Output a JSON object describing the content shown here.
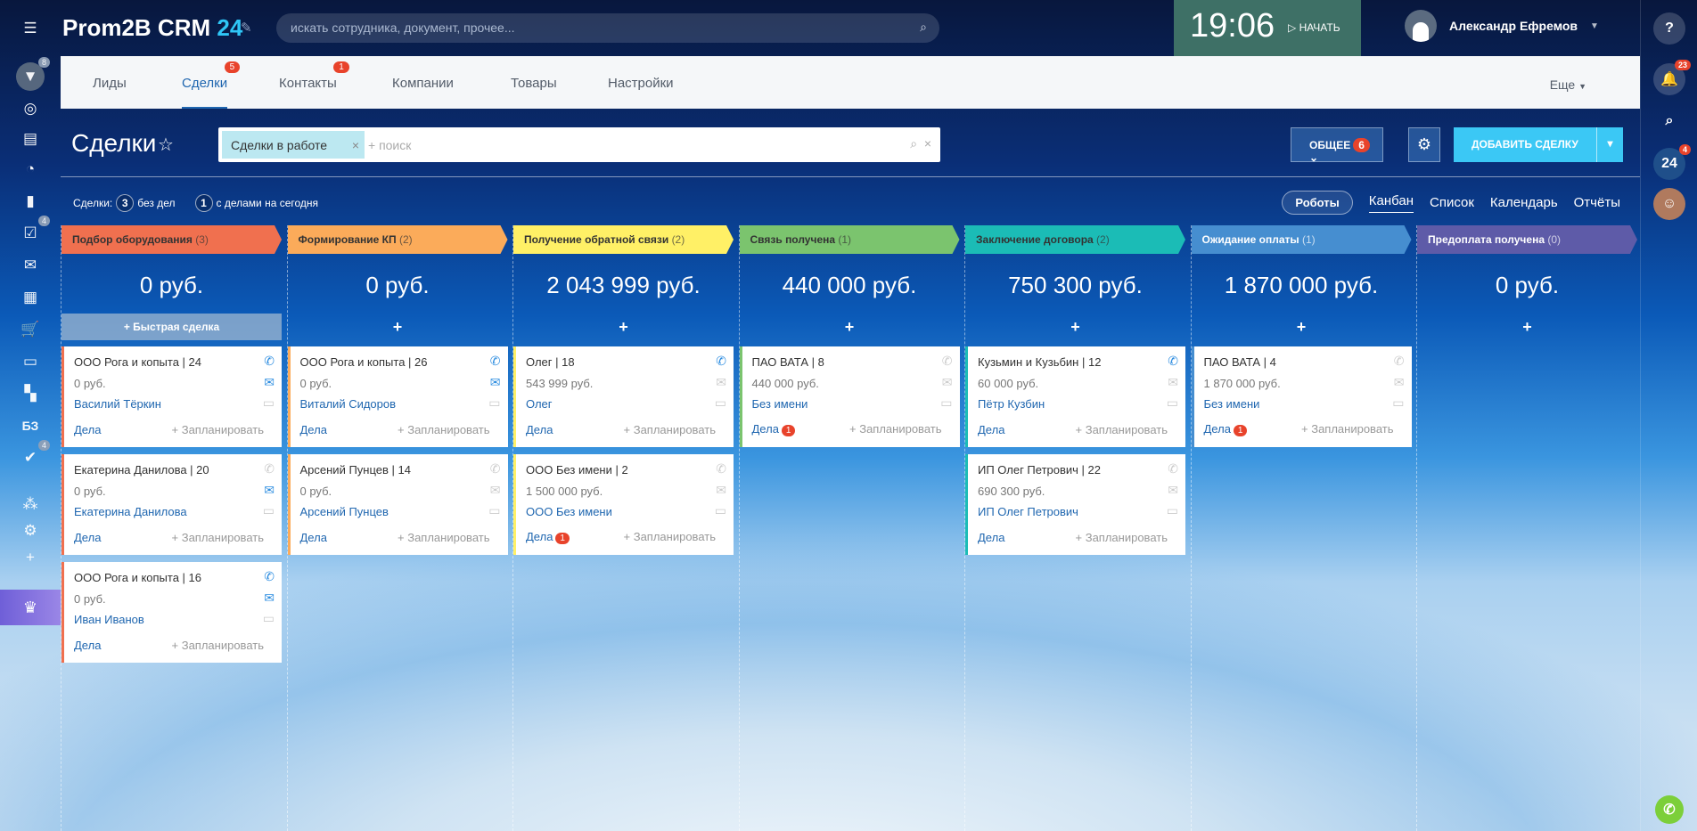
{
  "app": {
    "logo": "Prom2B CRM",
    "logo_num": "24",
    "search_placeholder": "искать сотрудника, документ, прочее...",
    "time": "19:06",
    "start_label": "НАЧАТЬ",
    "user_name": "Александр Ефремов"
  },
  "leftbar": {
    "badges": {
      "funnel": "8",
      "tasks": "4",
      "check": "4"
    },
    "kb_label": "БЗ"
  },
  "rightbar": {
    "notifications": "23",
    "b24": "24",
    "b24_badge": "4"
  },
  "tabs": [
    {
      "label": "Лиды"
    },
    {
      "label": "Сделки",
      "badge": "5",
      "active": true
    },
    {
      "label": "Контакты",
      "badge": "1"
    },
    {
      "label": "Компании"
    },
    {
      "label": "Товары"
    },
    {
      "label": "Настройки"
    }
  ],
  "more_label": "Еще",
  "page": {
    "title": "Сделки",
    "filter_chip": "Сделки в работе",
    "filter_placeholder": "+ поиск",
    "general_label": "ОБЩЕЕ",
    "general_badge": "6",
    "add_label": "ДОБАВИТЬ СДЕЛКУ"
  },
  "counters": {
    "prefix": "Сделки:",
    "c1": "3",
    "l1": "без дел",
    "c2": "1",
    "l2": "с делами на сегодня"
  },
  "views": {
    "robots": "Роботы",
    "items": [
      "Канбан",
      "Список",
      "Календарь",
      "Отчёты"
    ]
  },
  "quick_deal": "Быстрая сделка",
  "labels": {
    "dela": "Дела",
    "plan": "+ Запланировать"
  },
  "columns": [
    {
      "title": "Подбор оборудования",
      "count": "(3)",
      "color": "#f0704f",
      "sum": "0 руб.",
      "cards": [
        {
          "title": "ООО Рога и копыта | 24",
          "price": "0 руб.",
          "contact": "Василий Тёркин",
          "phone": true,
          "mail": true
        },
        {
          "title": "Екатерина Данилова | 20",
          "price": "0 руб.",
          "contact": "Екатерина Данилова",
          "phone": false,
          "mail": true
        },
        {
          "title": "ООО Рога и копыта | 16",
          "price": "0 руб.",
          "contact": "Иван Иванов",
          "phone": true,
          "mail": true
        }
      ]
    },
    {
      "title": "Формирование КП",
      "count": "(2)",
      "color": "#fbab5a",
      "sum": "0 руб.",
      "cards": [
        {
          "title": "ООО Рога и копыта | 26",
          "price": "0 руб.",
          "contact": "Виталий Сидоров",
          "phone": true,
          "mail": true
        },
        {
          "title": "Арсений Пунцев | 14",
          "price": "0 руб.",
          "contact": "Арсений Пунцев",
          "phone": false,
          "mail": false
        }
      ]
    },
    {
      "title": "Получение обратной связи",
      "count": "(2)",
      "color": "#fff066",
      "sum": "2 043 999 руб.",
      "cards": [
        {
          "title": "Олег | 18",
          "price": "543 999 руб.",
          "contact": "Олег",
          "phone": true,
          "mail": false
        },
        {
          "title": "ООО Без имени | 2",
          "price": "1 500 000 руб.",
          "contact": "ООО Без имени",
          "phone": false,
          "mail": false,
          "dela_badge": "1"
        }
      ]
    },
    {
      "title": "Связь получена",
      "count": "(1)",
      "color": "#7bc46e",
      "sum": "440 000 руб.",
      "cards": [
        {
          "title": "ПАО ВАТА | 8",
          "price": "440 000 руб.",
          "contact": "Без имени",
          "phone": false,
          "mail": false,
          "dela_badge": "1"
        }
      ]
    },
    {
      "title": "Заключение договора",
      "count": "(2)",
      "color": "#1bbcb6",
      "sum": "750 300 руб.",
      "cards": [
        {
          "title": "Кузьмин и Кузьбин | 12",
          "price": "60 000 руб.",
          "contact": "Пётр Кузбин",
          "phone": true,
          "mail": false
        },
        {
          "title": "ИП Олег Петрович | 22",
          "price": "690 300 руб.",
          "contact": "ИП Олег Петрович",
          "phone": false,
          "mail": false
        }
      ]
    },
    {
      "title": "Ожидание оплаты",
      "count": "(1)",
      "color": "#468ed0",
      "sum": "1 870 000 руб.",
      "cards": [
        {
          "title": "ПАО ВАТА | 4",
          "price": "1 870 000 руб.",
          "contact": "Без имени",
          "phone": false,
          "mail": false,
          "dela_badge": "1"
        }
      ]
    },
    {
      "title": "Предоплата получена",
      "count": "(0)",
      "color": "#5e5ba8",
      "sum": "0 руб.",
      "cards": []
    }
  ]
}
